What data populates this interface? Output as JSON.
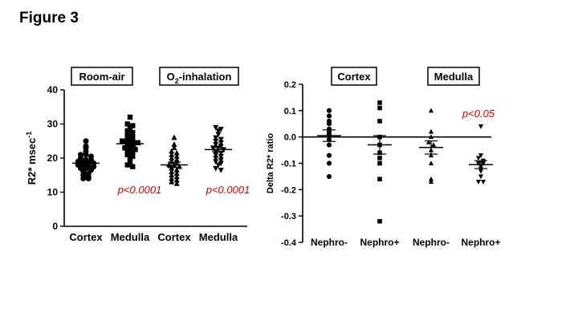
{
  "figure": {
    "title": "Figure 3"
  },
  "colors": {
    "axis": "#000000",
    "points": "#000000",
    "pvalue": "#cc0000",
    "box_border": "#000000"
  },
  "chart_data": [
    {
      "type": "scatter",
      "title": "",
      "xlabel": "",
      "ylabel": "R2* msec",
      "ylabel_superscript": "-1",
      "ylim": [
        0,
        40
      ],
      "yticks": [
        "0",
        "10",
        "20",
        "30",
        "40"
      ],
      "grid": false,
      "group_labels": [
        {
          "text": "Room-air",
          "spans": [
            0,
            1
          ]
        },
        {
          "text_main": "O",
          "text_sub": "2",
          "text_rest": "-inhalation",
          "spans": [
            2,
            3
          ]
        }
      ],
      "categories": [
        "Cortex",
        "Medulla",
        "Cortex",
        "Medulla"
      ],
      "series": [
        {
          "name": "Cortex",
          "marker": "circle",
          "mean": 18.5,
          "sem": 0.7,
          "values": [
            25,
            23.5,
            23,
            22,
            21,
            21,
            20.5,
            20,
            19.5,
            19.5,
            19,
            19,
            18.5,
            18.5,
            18,
            18,
            17.5,
            17.5,
            17,
            17,
            16.5,
            16,
            15.5,
            15,
            14.5,
            14,
            14
          ]
        },
        {
          "name": "Medulla",
          "marker": "square",
          "mean": 24.2,
          "sem": 0.7,
          "values": [
            32,
            30,
            29.5,
            29,
            28,
            27.5,
            27,
            26.5,
            26,
            25.5,
            25,
            25,
            24.5,
            24.5,
            24,
            23.5,
            23,
            23,
            22.5,
            22,
            21.5,
            21,
            20.5,
            20,
            19,
            18,
            17.5
          ],
          "pvalue": "p<0.0001"
        },
        {
          "name": "Cortex",
          "marker": "triangle-up",
          "mean": 18.0,
          "sem": 0.8,
          "values": [
            26,
            24,
            23,
            22,
            21.5,
            21,
            20.5,
            20,
            19.5,
            19,
            18.5,
            18,
            18,
            17.5,
            17,
            16.5,
            16,
            15.5,
            15,
            14.5,
            14,
            13.5,
            13,
            12.5
          ]
        },
        {
          "name": "Medulla",
          "marker": "triangle-down",
          "mean": 22.5,
          "sem": 0.6,
          "values": [
            29,
            28.5,
            28,
            27,
            26,
            25.5,
            25,
            24.5,
            24,
            23.5,
            23,
            23,
            22.5,
            22,
            21.5,
            21,
            20.5,
            20,
            19.5,
            19,
            18.5,
            18,
            17,
            16.5
          ],
          "pvalue": "p<0.0001"
        }
      ]
    },
    {
      "type": "scatter",
      "title": "",
      "xlabel": "",
      "ylabel": "Delta R2* ratio",
      "ylim": [
        -0.4,
        0.2
      ],
      "yticks": [
        "0.2",
        "0.1",
        "0.0",
        "-0.1",
        "-0.2",
        "-0.3",
        "-0.4"
      ],
      "zero_line": true,
      "grid": false,
      "group_labels": [
        {
          "text": "Cortex",
          "spans": [
            0,
            1
          ]
        },
        {
          "text": "Medulla",
          "spans": [
            2,
            3
          ]
        }
      ],
      "categories": [
        "Nephro-",
        "Nephro+",
        "Nephro-",
        "Nephro+"
      ],
      "series": [
        {
          "name": "Nephro-",
          "marker": "circle",
          "mean": 0.005,
          "sem": 0.022,
          "values": [
            0.1,
            0.08,
            0.06,
            0.05,
            0.03,
            0.02,
            0.01,
            -0.01,
            -0.03,
            -0.07,
            -0.1,
            -0.15
          ]
        },
        {
          "name": "Nephro+",
          "marker": "square",
          "mean": -0.03,
          "sem": 0.035,
          "values": [
            0.13,
            0.11,
            0.06,
            0.0,
            -0.03,
            -0.06,
            -0.08,
            -0.1,
            -0.16,
            -0.32
          ]
        },
        {
          "name": "Nephro-",
          "marker": "triangle-up",
          "mean": -0.04,
          "sem": 0.025,
          "values": [
            0.1,
            0.02,
            0.0,
            -0.02,
            -0.03,
            -0.05,
            -0.07,
            -0.1,
            -0.16,
            -0.17
          ]
        },
        {
          "name": "Nephro+",
          "marker": "triangle-down",
          "mean": -0.105,
          "sem": 0.015,
          "values": [
            0.04,
            -0.07,
            -0.08,
            -0.09,
            -0.1,
            -0.1,
            -0.11,
            -0.12,
            -0.13,
            -0.15,
            -0.17,
            -0.17
          ],
          "pvalue": "p<0.05"
        }
      ]
    }
  ]
}
